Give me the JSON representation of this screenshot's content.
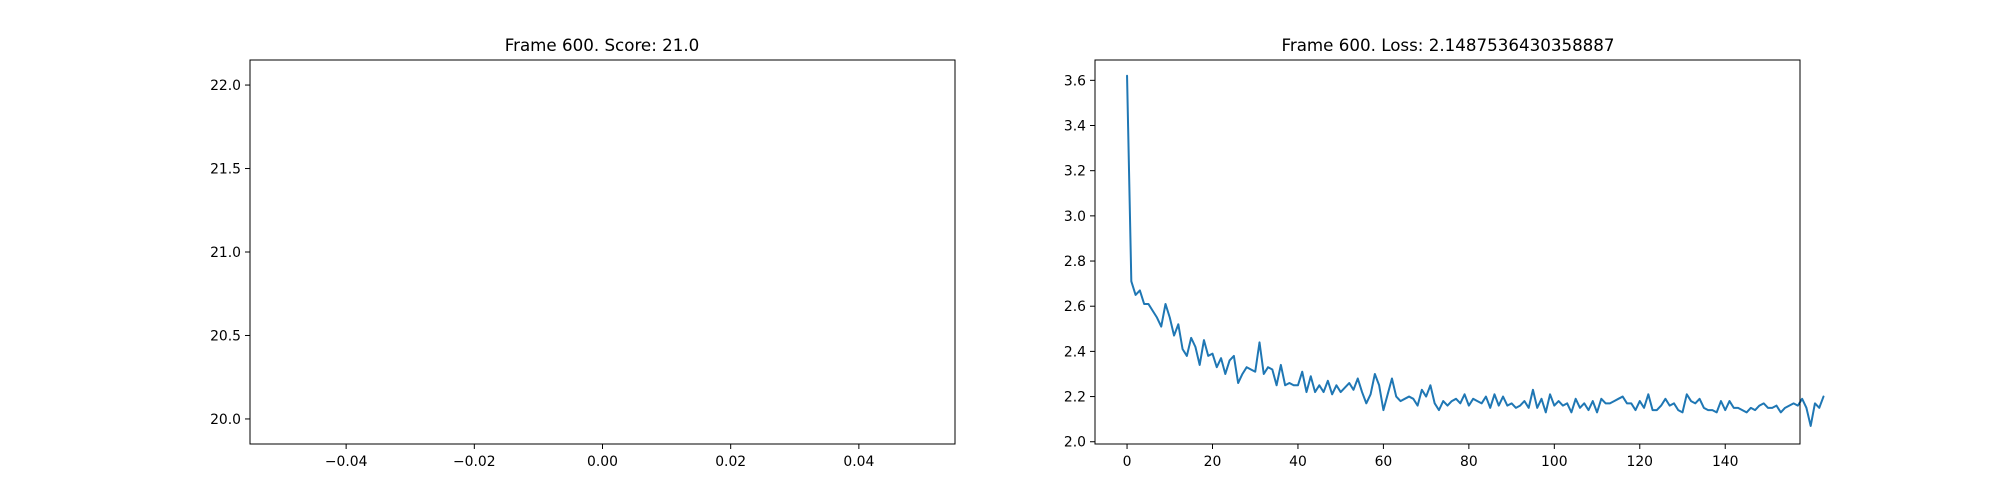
{
  "chart_data": [
    {
      "type": "scatter",
      "title": "Frame 600. Score: 21.0",
      "xlabel": "",
      "ylabel": "",
      "xlim": [
        -0.055,
        0.055
      ],
      "ylim": [
        19.85,
        22.15
      ],
      "xticks": [
        -0.04,
        -0.02,
        0.0,
        0.02,
        0.04
      ],
      "xtick_labels": [
        "−0.04",
        "−0.02",
        "0.00",
        "0.02",
        "0.04"
      ],
      "yticks": [
        20.0,
        20.5,
        21.0,
        21.5,
        22.0
      ],
      "ytick_labels": [
        "20.0",
        "20.5",
        "21.0",
        "21.5",
        "22.0"
      ],
      "series": [],
      "grid": false
    },
    {
      "type": "line",
      "title": "Frame 600. Loss: 2.1487536430358887",
      "xlabel": "",
      "ylabel": "",
      "xlim": [
        -7.5,
        157.5
      ],
      "ylim": [
        1.99,
        3.69
      ],
      "xticks": [
        0,
        20,
        40,
        60,
        80,
        100,
        120,
        140
      ],
      "xtick_labels": [
        "0",
        "20",
        "40",
        "60",
        "80",
        "100",
        "120",
        "140"
      ],
      "yticks": [
        2.0,
        2.2,
        2.4,
        2.6,
        2.8,
        3.0,
        3.2,
        3.4,
        3.6
      ],
      "ytick_labels": [
        "2.0",
        "2.2",
        "2.4",
        "2.6",
        "2.8",
        "3.0",
        "3.2",
        "3.4",
        "3.6"
      ],
      "color": "#1f77b4",
      "grid": false,
      "series": [
        {
          "values": [
            3.62,
            2.71,
            2.65,
            2.67,
            2.61,
            2.61,
            2.58,
            2.55,
            2.51,
            2.61,
            2.55,
            2.47,
            2.52,
            2.41,
            2.38,
            2.46,
            2.42,
            2.34,
            2.45,
            2.38,
            2.39,
            2.33,
            2.37,
            2.3,
            2.36,
            2.38,
            2.26,
            2.3,
            2.33,
            2.32,
            2.31,
            2.44,
            2.3,
            2.33,
            2.32,
            2.25,
            2.34,
            2.25,
            2.26,
            2.25,
            2.25,
            2.31,
            2.22,
            2.29,
            2.22,
            2.25,
            2.22,
            2.27,
            2.21,
            2.25,
            2.22,
            2.24,
            2.26,
            2.23,
            2.28,
            2.22,
            2.17,
            2.21,
            2.3,
            2.25,
            2.14,
            2.21,
            2.28,
            2.2,
            2.18,
            2.19,
            2.2,
            2.19,
            2.16,
            2.23,
            2.2,
            2.25,
            2.17,
            2.14,
            2.18,
            2.16,
            2.18,
            2.19,
            2.17,
            2.21,
            2.16,
            2.19,
            2.18,
            2.17,
            2.2,
            2.15,
            2.21,
            2.16,
            2.2,
            2.16,
            2.17,
            2.15,
            2.16,
            2.18,
            2.15,
            2.23,
            2.15,
            2.19,
            2.13,
            2.21,
            2.16,
            2.18,
            2.16,
            2.17,
            2.13,
            2.19,
            2.15,
            2.17,
            2.14,
            2.18,
            2.13,
            2.19,
            2.17,
            2.17,
            2.18,
            2.19,
            2.2,
            2.17,
            2.17,
            2.14,
            2.18,
            2.15,
            2.21,
            2.14,
            2.14,
            2.16,
            2.19,
            2.16,
            2.17,
            2.14,
            2.13,
            2.21,
            2.18,
            2.17,
            2.19,
            2.15,
            2.14,
            2.14,
            2.13,
            2.18,
            2.14,
            2.18,
            2.15,
            2.15,
            2.14,
            2.13,
            2.15,
            2.14,
            2.16,
            2.17,
            2.15,
            2.15,
            2.16,
            2.13,
            2.15,
            2.16,
            2.17,
            2.16,
            2.19,
            2.15,
            2.07,
            2.17,
            2.15,
            2.2
          ]
        }
      ]
    }
  ]
}
